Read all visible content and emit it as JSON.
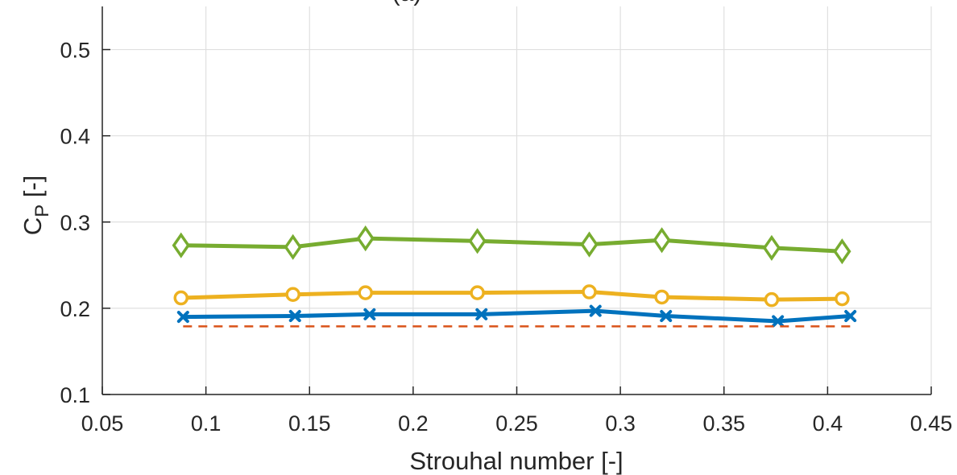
{
  "chart_data": {
    "type": "line",
    "title": "(a)",
    "xlabel": "Strouhal number [-]",
    "ylabel": {
      "main": "C",
      "sub": "P",
      "suffix": " [-]"
    },
    "xlim": [
      0.05,
      0.45
    ],
    "ylim": [
      0.1,
      0.55
    ],
    "xticks": [
      0.05,
      0.1,
      0.15,
      0.2,
      0.25,
      0.3,
      0.35,
      0.4,
      0.45
    ],
    "xtick_labels": [
      "0.05",
      "0.1",
      "0.15",
      "0.2",
      "0.25",
      "0.3",
      "0.35",
      "0.4",
      "0.45"
    ],
    "yticks": [
      0.1,
      0.2,
      0.3,
      0.4,
      0.5
    ],
    "ytick_labels": [
      "0.1",
      "0.2",
      "0.3",
      "0.4",
      "0.5"
    ],
    "grid": true,
    "series": [
      {
        "color": "#0072bd",
        "marker": "x",
        "line": "solid",
        "x": [
          0.089,
          0.143,
          0.179,
          0.233,
          0.288,
          0.322,
          0.376,
          0.411
        ],
        "y": [
          0.19,
          0.191,
          0.193,
          0.193,
          0.197,
          0.191,
          0.185,
          0.191
        ]
      },
      {
        "color": "#d95319",
        "marker": "none",
        "line": "dashed",
        "x": [
          0.089,
          0.411
        ],
        "y": [
          0.179,
          0.179
        ]
      },
      {
        "color": "#edb120",
        "marker": "o",
        "line": "solid",
        "x": [
          0.088,
          0.142,
          0.177,
          0.231,
          0.285,
          0.32,
          0.373,
          0.407
        ],
        "y": [
          0.212,
          0.216,
          0.218,
          0.218,
          0.219,
          0.213,
          0.21,
          0.211
        ]
      },
      {
        "color": "#77ac30",
        "marker": "diamond",
        "line": "solid",
        "x": [
          0.088,
          0.142,
          0.177,
          0.231,
          0.285,
          0.32,
          0.373,
          0.407
        ],
        "y": [
          0.273,
          0.271,
          0.281,
          0.278,
          0.274,
          0.279,
          0.27,
          0.266
        ]
      }
    ]
  }
}
